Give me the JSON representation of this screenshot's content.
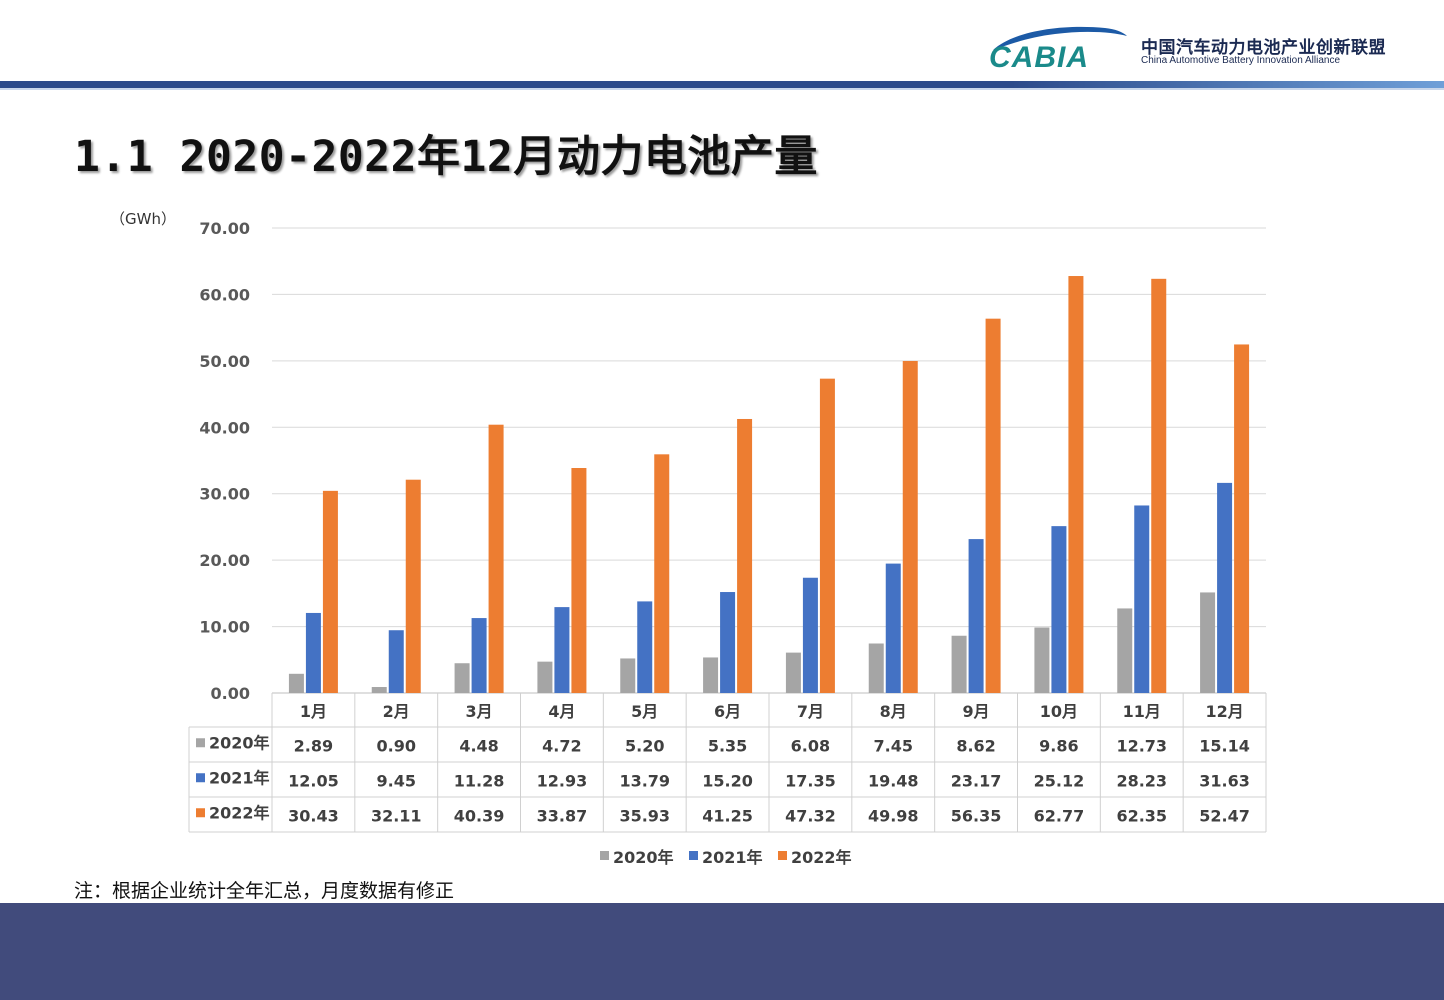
{
  "header": {
    "logo_text": "CABIA",
    "org_name_cn": "中国汽车动力电池产业创新联盟",
    "org_name_en": "China Automotive Battery Innovation Alliance"
  },
  "page_title": "1.1 2020-2022年12月动力电池产量",
  "note": "注：根据企业统计全年汇总，月度数据有修正",
  "colors": {
    "accent": "#2c4a8a",
    "footer": "#414b7c",
    "series_2020": "#a5a5a5",
    "series_2021": "#4472c4",
    "series_2022": "#ed7d31"
  },
  "chart_data": {
    "type": "bar",
    "ylabel": "（GWh）",
    "ylim": [
      0,
      70
    ],
    "yticks": [
      "0.00",
      "10.00",
      "20.00",
      "30.00",
      "40.00",
      "50.00",
      "60.00",
      "70.00"
    ],
    "grid": true,
    "legend_position": "bottom",
    "categories": [
      "1月",
      "2月",
      "3月",
      "4月",
      "5月",
      "6月",
      "7月",
      "8月",
      "9月",
      "10月",
      "11月",
      "12月"
    ],
    "series": [
      {
        "name": "2020年",
        "color": "#a5a5a5",
        "values": [
          2.89,
          0.9,
          4.48,
          4.72,
          5.2,
          5.35,
          6.08,
          7.45,
          8.62,
          9.86,
          12.73,
          15.14
        ],
        "labels": [
          "2.89",
          "0.90",
          "4.48",
          "4.72",
          "5.20",
          "5.35",
          "6.08",
          "7.45",
          "8.62",
          "9.86",
          "12.73",
          "15.14"
        ]
      },
      {
        "name": "2021年",
        "color": "#4472c4",
        "values": [
          12.05,
          9.45,
          11.28,
          12.93,
          13.79,
          15.2,
          17.35,
          19.48,
          23.17,
          25.12,
          28.23,
          31.63
        ],
        "labels": [
          "12.05",
          "9.45",
          "11.28",
          "12.93",
          "13.79",
          "15.20",
          "17.35",
          "19.48",
          "23.17",
          "25.12",
          "28.23",
          "31.63"
        ]
      },
      {
        "name": "2022年",
        "color": "#ed7d31",
        "values": [
          30.43,
          32.11,
          40.39,
          33.87,
          35.93,
          41.25,
          47.32,
          49.98,
          56.35,
          62.77,
          62.35,
          52.47
        ],
        "labels": [
          "30.43",
          "32.11",
          "40.39",
          "33.87",
          "35.93",
          "41.25",
          "47.32",
          "49.98",
          "56.35",
          "62.77",
          "62.35",
          "52.47"
        ]
      }
    ]
  }
}
